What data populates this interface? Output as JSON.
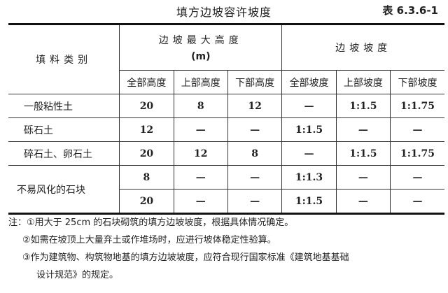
{
  "title": "填方边坡容许坡度",
  "table_no": "表 6.3.6-1",
  "header": {
    "material": "填料类别",
    "max_height": "边坡最大高度",
    "unit": "(m)",
    "slope": "边坡坡度",
    "sub": [
      "全部高度",
      "上部高度",
      "下部高度",
      "全部坡度",
      "上部坡度",
      "下部坡度"
    ]
  },
  "rows": [
    {
      "material": "一般粘性土",
      "cells": [
        "20",
        "8",
        "12",
        "—",
        "1:1.5",
        "1:1.75"
      ]
    },
    {
      "material": "砾石土",
      "cells": [
        "12",
        "—",
        "—",
        "1:1.5",
        "—",
        "—"
      ]
    },
    {
      "material": "碎石土、卵石土",
      "cells": [
        "20",
        "12",
        "8",
        "—",
        "1:1.5",
        "1:1.75"
      ]
    },
    {
      "material": "不易风化的石块",
      "cells": [
        "8",
        "—",
        "—",
        "1:1.3",
        "—",
        "—"
      ]
    },
    {
      "material": "",
      "cells": [
        "20",
        "—",
        "—",
        "1:1.5",
        "—",
        "—"
      ]
    }
  ],
  "notes": [
    "注：①用大于 25cm 的石块砌筑的填方边坡坡度，根据具体情况确定。",
    "②如需在坡顶上大量弃土或作堆场时，应进行坡体稳定性验算。",
    "③作为建筑物、构筑物地基的填方边坡坡度，应符合现行国家标准《建筑地基基础",
    "设计规范》的规定。"
  ]
}
